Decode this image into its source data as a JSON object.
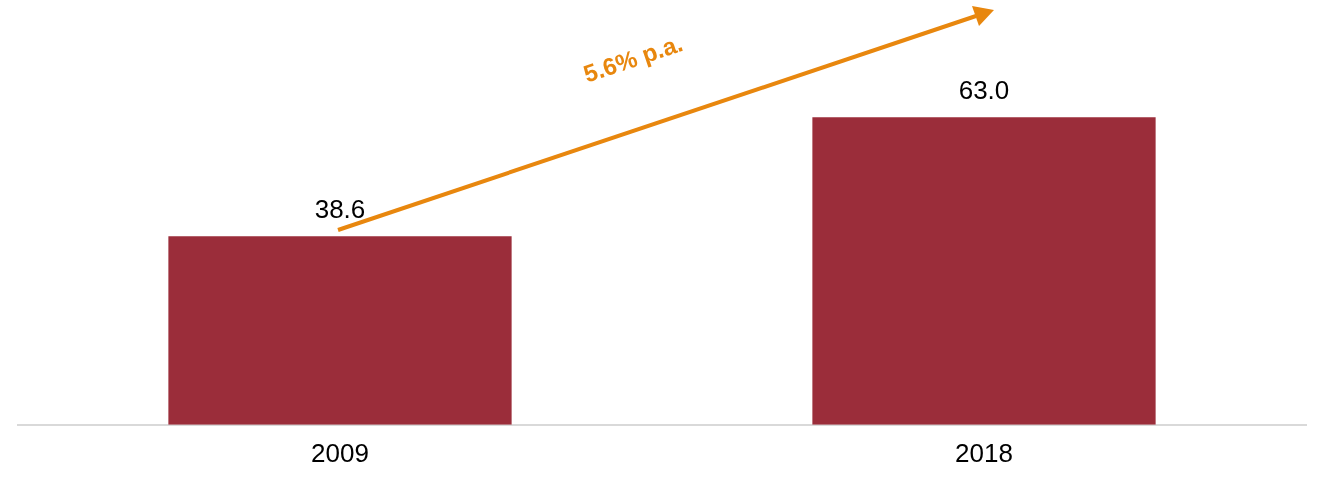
{
  "chart_data": {
    "type": "bar",
    "categories": [
      "2009",
      "2018"
    ],
    "values": [
      38.6,
      63.0
    ],
    "value_labels": [
      "38.6",
      "63.0"
    ],
    "color": "#9b2d3a",
    "tick_labels": "x",
    "grid": false,
    "legend": false,
    "annotations": [
      "5.6% p.a."
    ]
  }
}
